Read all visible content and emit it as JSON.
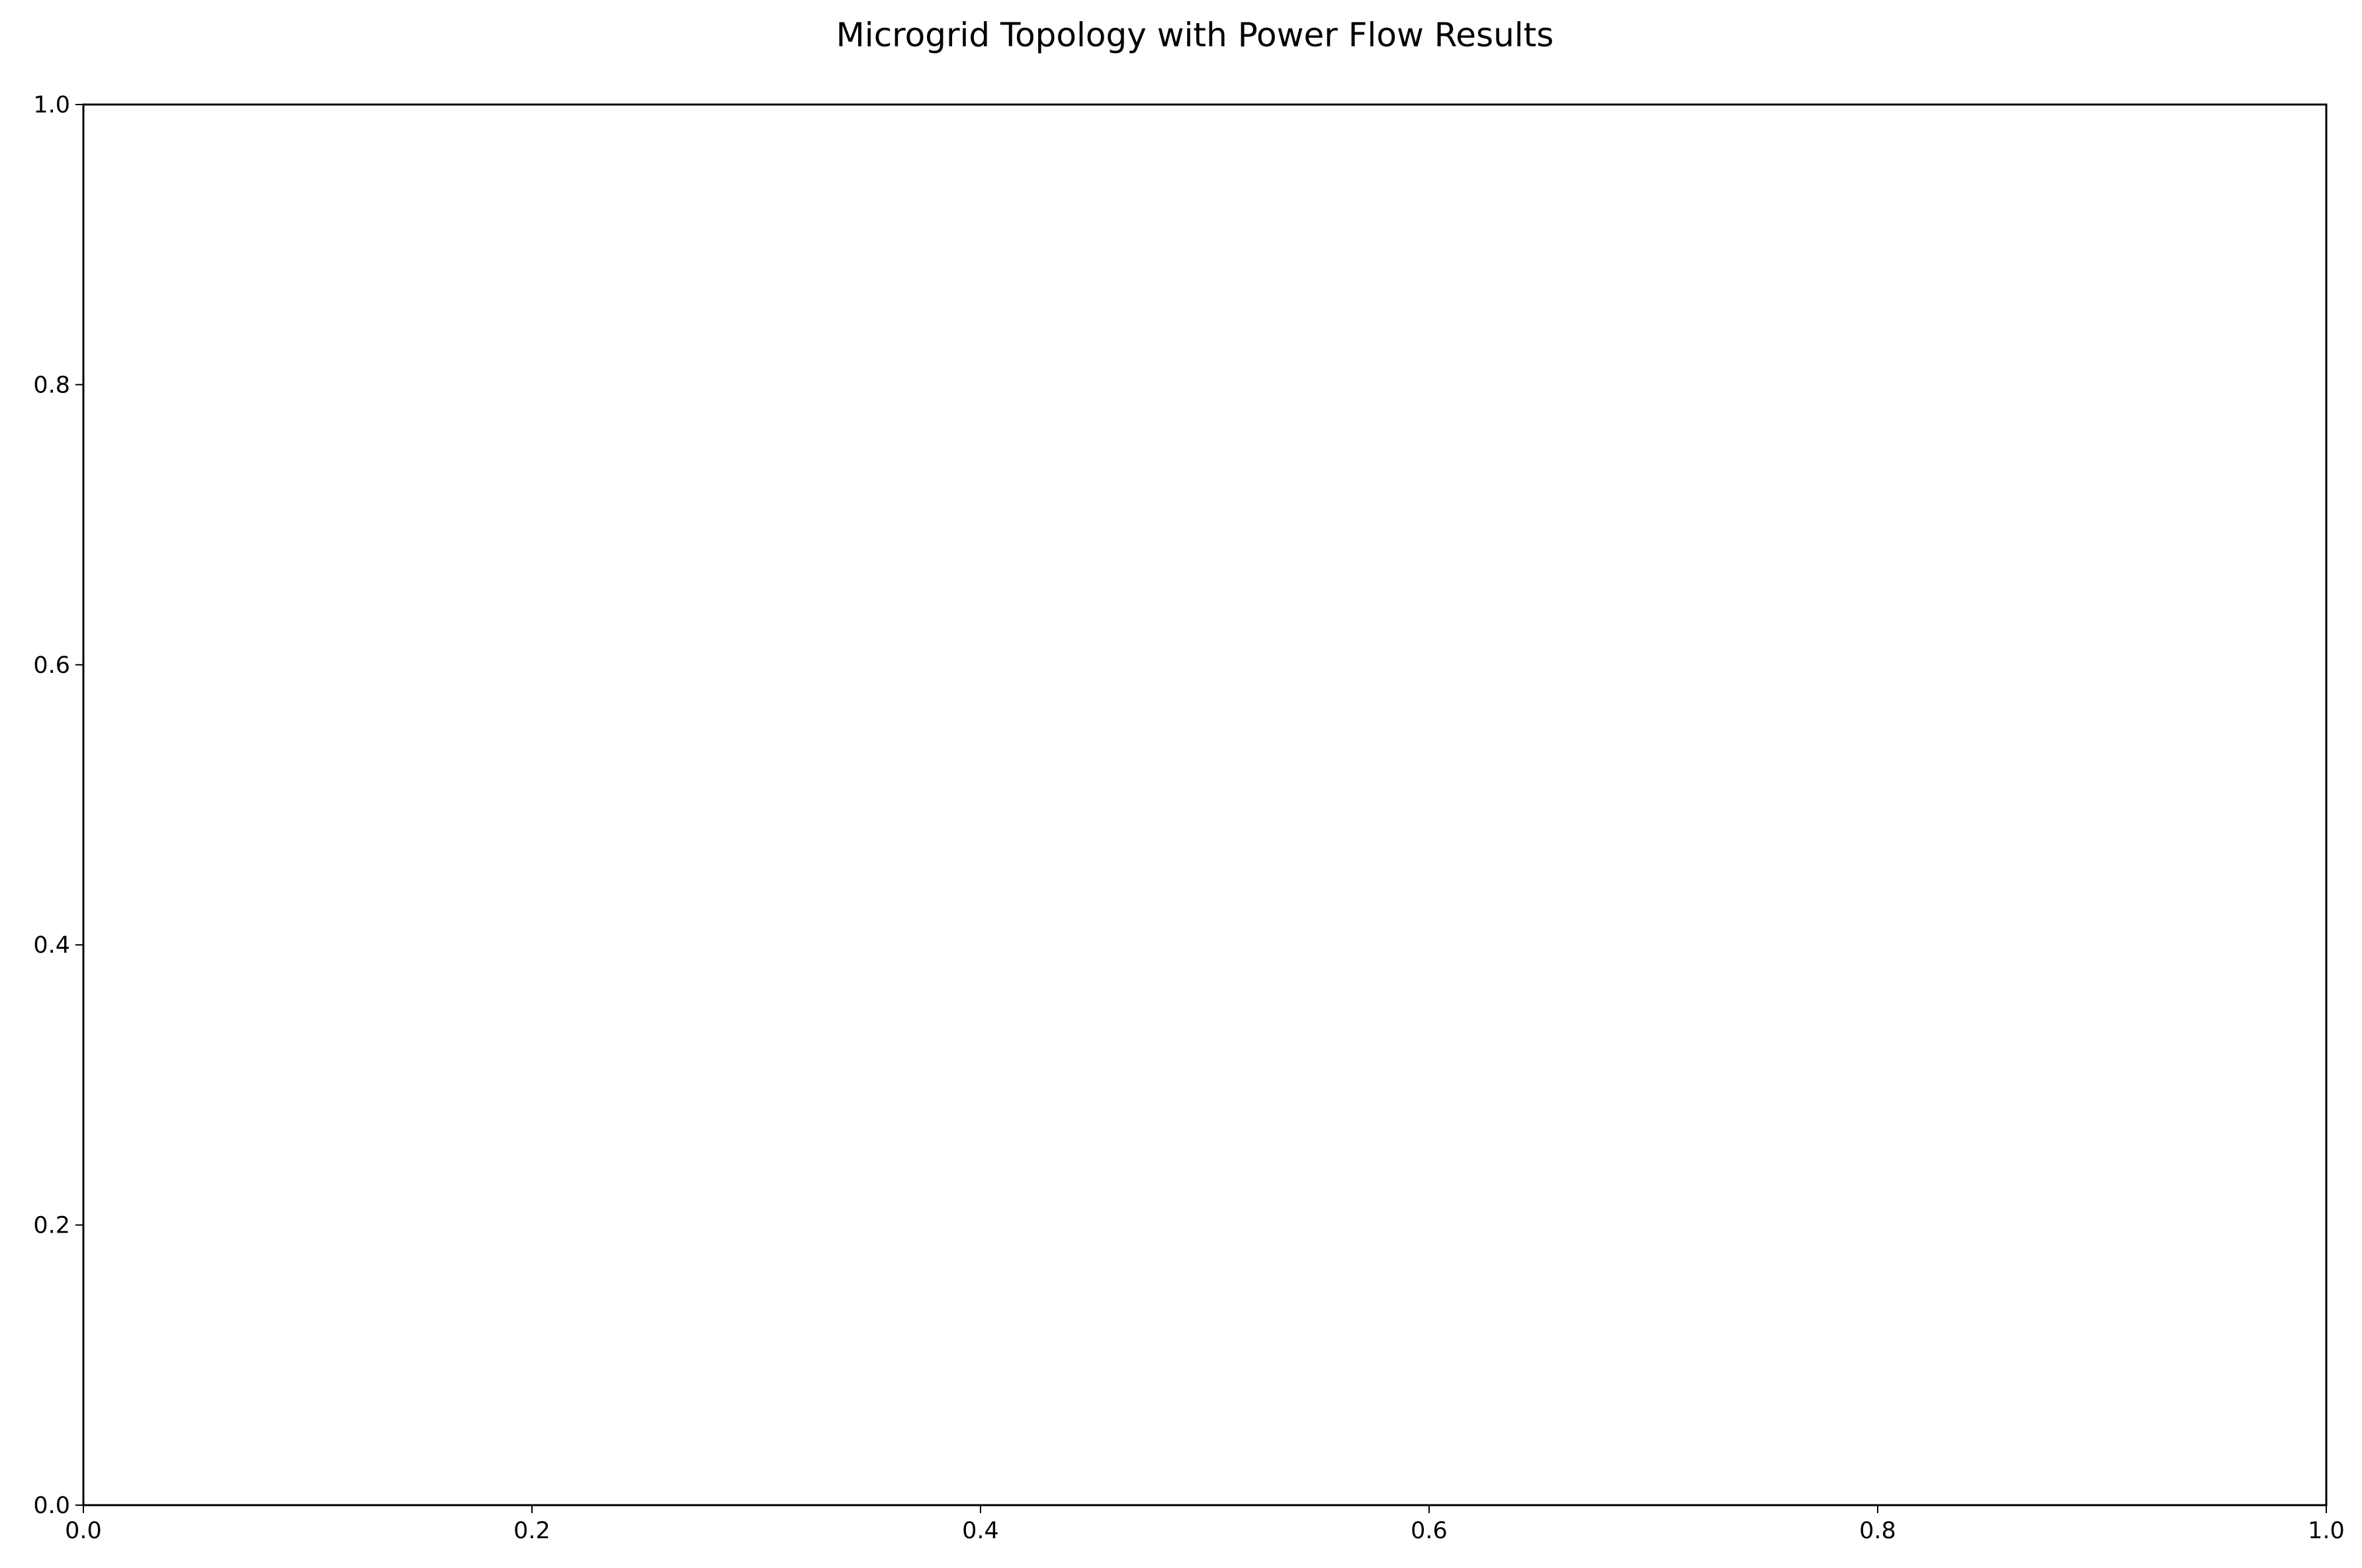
{
  "chart_data": {
    "type": "scatter",
    "title": "Microgrid Topology with Power Flow Results",
    "xlabel": "",
    "ylabel": "",
    "xlim": [
      0.0,
      1.0
    ],
    "ylim": [
      0.0,
      1.0
    ],
    "x_ticks": [
      {
        "value": 0.0,
        "label": "0.0"
      },
      {
        "value": 0.2,
        "label": "0.2"
      },
      {
        "value": 0.4,
        "label": "0.4"
      },
      {
        "value": 0.6,
        "label": "0.6"
      },
      {
        "value": 0.8,
        "label": "0.8"
      },
      {
        "value": 1.0,
        "label": "1.0"
      }
    ],
    "y_ticks": [
      {
        "value": 0.0,
        "label": "0.0"
      },
      {
        "value": 0.2,
        "label": "0.2"
      },
      {
        "value": 0.4,
        "label": "0.4"
      },
      {
        "value": 0.6,
        "label": "0.6"
      },
      {
        "value": 0.8,
        "label": "0.8"
      },
      {
        "value": 1.0,
        "label": "1.0"
      }
    ],
    "series": [],
    "grid": false,
    "legend": "none"
  },
  "colors": {
    "background": "#ffffff",
    "axes": "#000000",
    "text": "#000000"
  }
}
